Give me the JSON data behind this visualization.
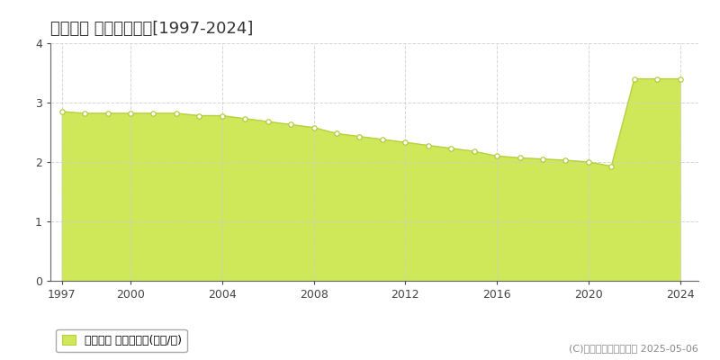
{
  "title": "五ヶ瀬町 基準地価推移[1997-2024]",
  "years": [
    1997,
    1998,
    1999,
    2000,
    2001,
    2002,
    2003,
    2004,
    2005,
    2006,
    2007,
    2008,
    2009,
    2010,
    2011,
    2012,
    2013,
    2014,
    2015,
    2016,
    2017,
    2018,
    2019,
    2020,
    2021,
    2022,
    2023,
    2024
  ],
  "values": [
    2.85,
    2.82,
    2.82,
    2.82,
    2.82,
    2.82,
    2.78,
    2.78,
    2.73,
    2.68,
    2.63,
    2.58,
    2.48,
    2.43,
    2.38,
    2.33,
    2.28,
    2.23,
    2.18,
    2.1,
    2.07,
    2.05,
    2.03,
    2.0,
    1.93,
    3.4,
    3.4,
    3.4
  ],
  "fill_color": "#cee85a",
  "line_color": "#b8d040",
  "marker_facecolor": "#ffffff",
  "marker_edgecolor": "#aac830",
  "background_color": "#ffffff",
  "plot_bg_color": "#ffffff",
  "grid_color": "#cccccc",
  "ylim": [
    0,
    4
  ],
  "yticks": [
    0,
    1,
    2,
    3,
    4
  ],
  "xticks": [
    1997,
    2000,
    2004,
    2008,
    2012,
    2016,
    2020,
    2024
  ],
  "legend_label": "基準地価 平均坪単価(万円/坪)",
  "copyright_text": "(C)土地価格ドットコム 2025-05-06",
  "title_fontsize": 13,
  "tick_fontsize": 9,
  "legend_fontsize": 9,
  "copyright_fontsize": 8,
  "xlim_left": 1996.5,
  "xlim_right": 2024.8
}
